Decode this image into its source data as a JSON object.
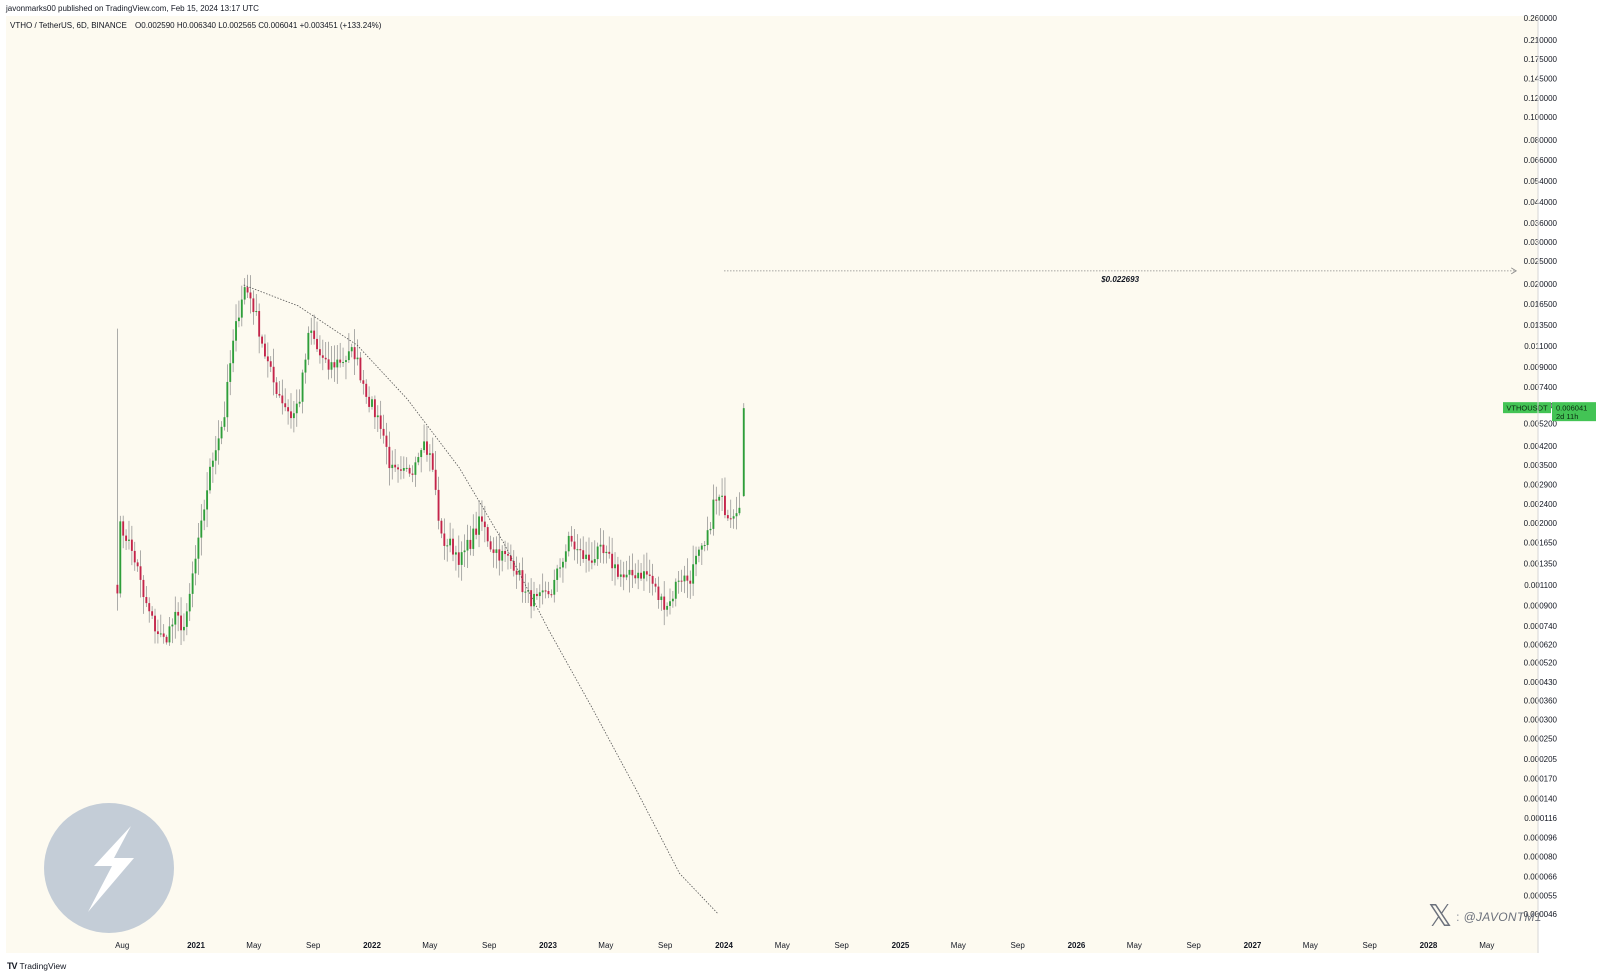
{
  "header": {
    "published_line": "javonmarks00 published on TradingView.com, Feb 15, 2024 13:17 UTC"
  },
  "footer": {
    "brand": "TradingView"
  },
  "watermark": {
    "handle": "@JAVONTM1",
    "colon": ":"
  },
  "legend": {
    "symbol_line": "VTHO / TetherUS, 6D, BINANCE",
    "ohlc": "O0.002590  H0.006340  L0.002565  C0.006041  +0.003451 (+133.24%)"
  },
  "price_tag": {
    "symbol": "VTHOUSDT",
    "price": "0.006041",
    "countdown": "2d 11h"
  },
  "colors": {
    "background": "#fdfaf0",
    "up": "#2e9e3a",
    "down": "#c4244a",
    "tag": "#43c455"
  },
  "chart_data": {
    "type": "candlestick",
    "scale": "log",
    "ylim": [
      4.6e-05,
      0.26
    ],
    "y_ticks": [
      0.26,
      0.21,
      0.175,
      0.145,
      0.12,
      0.1,
      0.08,
      0.066,
      0.054,
      0.044,
      0.036,
      0.03,
      0.025,
      0.02,
      0.0165,
      0.0135,
      0.011,
      0.009,
      0.0074,
      0.0062,
      0.0052,
      0.0042,
      0.0035,
      0.0029,
      0.0024,
      0.002,
      0.00165,
      0.00135,
      0.0011,
      0.0009,
      0.00074,
      0.00062,
      0.00052,
      0.00043,
      0.00036,
      0.0003,
      0.00025,
      0.000205,
      0.00017,
      0.00014,
      0.000116,
      9.6e-05,
      8e-05,
      6.6e-05,
      5.5e-05,
      4.6e-05
    ],
    "x_tick_labels": [
      {
        "label": "Aug",
        "date": "2020-08-01",
        "major": false
      },
      {
        "label": "2021",
        "date": "2021-01-01",
        "major": true
      },
      {
        "label": "May",
        "date": "2021-05-01",
        "major": false
      },
      {
        "label": "Sep",
        "date": "2021-09-01",
        "major": false
      },
      {
        "label": "2022",
        "date": "2022-01-01",
        "major": true
      },
      {
        "label": "May",
        "date": "2022-05-01",
        "major": false
      },
      {
        "label": "Sep",
        "date": "2022-09-01",
        "major": false
      },
      {
        "label": "2023",
        "date": "2023-01-01",
        "major": true
      },
      {
        "label": "May",
        "date": "2023-05-01",
        "major": false
      },
      {
        "label": "Sep",
        "date": "2023-09-01",
        "major": false
      },
      {
        "label": "2024",
        "date": "2024-01-01",
        "major": true
      },
      {
        "label": "May",
        "date": "2024-05-01",
        "major": false
      },
      {
        "label": "Sep",
        "date": "2024-09-01",
        "major": false
      },
      {
        "label": "2025",
        "date": "2025-01-01",
        "major": true
      },
      {
        "label": "May",
        "date": "2025-05-01",
        "major": false
      },
      {
        "label": "Sep",
        "date": "2025-09-01",
        "major": false
      },
      {
        "label": "2026",
        "date": "2026-01-01",
        "major": true
      },
      {
        "label": "May",
        "date": "2026-05-01",
        "major": false
      },
      {
        "label": "Sep",
        "date": "2026-09-01",
        "major": false
      },
      {
        "label": "2027",
        "date": "2027-01-01",
        "major": true
      },
      {
        "label": "May",
        "date": "2027-05-01",
        "major": false
      },
      {
        "label": "Sep",
        "date": "2027-09-01",
        "major": false
      },
      {
        "label": "2028",
        "date": "2028-01-01",
        "major": true
      },
      {
        "label": "May",
        "date": "2028-05-01",
        "major": false
      }
    ],
    "candle_close_path": [
      {
        "date": "2020-07-22",
        "close": 0.0011
      },
      {
        "date": "2020-07-28",
        "close": 0.0019
      },
      {
        "date": "2020-08-10",
        "close": 0.00175
      },
      {
        "date": "2020-08-30",
        "close": 0.00135
      },
      {
        "date": "2020-09-15",
        "close": 0.00095
      },
      {
        "date": "2020-10-05",
        "close": 0.00075
      },
      {
        "date": "2020-10-25",
        "close": 0.00064
      },
      {
        "date": "2020-11-20",
        "close": 0.0008
      },
      {
        "date": "2020-12-10",
        "close": 0.00072
      },
      {
        "date": "2020-12-25",
        "close": 0.0012
      },
      {
        "date": "2021-01-10",
        "close": 0.0018
      },
      {
        "date": "2021-01-25",
        "close": 0.0029
      },
      {
        "date": "2021-02-10",
        "close": 0.0042
      },
      {
        "date": "2021-02-28",
        "close": 0.0055
      },
      {
        "date": "2021-03-15",
        "close": 0.01
      },
      {
        "date": "2021-04-01",
        "close": 0.016
      },
      {
        "date": "2021-04-10",
        "close": 0.0195
      },
      {
        "date": "2021-04-25",
        "close": 0.0175
      },
      {
        "date": "2021-05-10",
        "close": 0.0135
      },
      {
        "date": "2021-05-25",
        "close": 0.01
      },
      {
        "date": "2021-06-10",
        "close": 0.0078
      },
      {
        "date": "2021-06-30",
        "close": 0.0065
      },
      {
        "date": "2021-07-20",
        "close": 0.0055
      },
      {
        "date": "2021-08-05",
        "close": 0.0068
      },
      {
        "date": "2021-08-25",
        "close": 0.013
      },
      {
        "date": "2021-09-10",
        "close": 0.0105
      },
      {
        "date": "2021-09-30",
        "close": 0.0088
      },
      {
        "date": "2021-10-20",
        "close": 0.0095
      },
      {
        "date": "2021-11-10",
        "close": 0.0098
      },
      {
        "date": "2021-11-25",
        "close": 0.0105
      },
      {
        "date": "2021-12-10",
        "close": 0.0082
      },
      {
        "date": "2021-12-30",
        "close": 0.0062
      },
      {
        "date": "2022-01-20",
        "close": 0.0052
      },
      {
        "date": "2022-02-10",
        "close": 0.0033
      },
      {
        "date": "2022-03-01",
        "close": 0.0031
      },
      {
        "date": "2022-03-25",
        "close": 0.0034
      },
      {
        "date": "2022-04-15",
        "close": 0.0045
      },
      {
        "date": "2022-05-05",
        "close": 0.0036
      },
      {
        "date": "2022-05-25",
        "close": 0.0017
      },
      {
        "date": "2022-06-15",
        "close": 0.0016
      },
      {
        "date": "2022-07-05",
        "close": 0.0014
      },
      {
        "date": "2022-07-25",
        "close": 0.0017
      },
      {
        "date": "2022-08-15",
        "close": 0.00205
      },
      {
        "date": "2022-09-05",
        "close": 0.0016
      },
      {
        "date": "2022-09-30",
        "close": 0.00145
      },
      {
        "date": "2022-10-25",
        "close": 0.00135
      },
      {
        "date": "2022-11-15",
        "close": 0.001
      },
      {
        "date": "2022-12-10",
        "close": 0.00093
      },
      {
        "date": "2023-01-10",
        "close": 0.00105
      },
      {
        "date": "2023-01-30",
        "close": 0.0014
      },
      {
        "date": "2023-02-15",
        "close": 0.0017
      },
      {
        "date": "2023-03-05",
        "close": 0.0015
      },
      {
        "date": "2023-03-25",
        "close": 0.0014
      },
      {
        "date": "2023-04-20",
        "close": 0.0015
      },
      {
        "date": "2023-05-15",
        "close": 0.00135
      },
      {
        "date": "2023-06-10",
        "close": 0.00115
      },
      {
        "date": "2023-07-05",
        "close": 0.00125
      },
      {
        "date": "2023-07-30",
        "close": 0.0012
      },
      {
        "date": "2023-08-20",
        "close": 0.00095
      },
      {
        "date": "2023-09-10",
        "close": 0.00092
      },
      {
        "date": "2023-09-30",
        "close": 0.0012
      },
      {
        "date": "2023-10-20",
        "close": 0.00115
      },
      {
        "date": "2023-11-05",
        "close": 0.0014
      },
      {
        "date": "2023-11-25",
        "close": 0.0016
      },
      {
        "date": "2023-12-10",
        "close": 0.0024
      },
      {
        "date": "2023-12-25",
        "close": 0.0025
      },
      {
        "date": "2024-01-10",
        "close": 0.0022
      },
      {
        "date": "2024-01-25",
        "close": 0.0023
      },
      {
        "date": "2024-02-05",
        "close": 0.00259
      },
      {
        "date": "2024-02-11",
        "close": 0.006041
      }
    ],
    "last_candle": {
      "open": 0.00259,
      "high": 0.00634,
      "low": 0.002565,
      "close": 0.006041
    },
    "first_candle_high": 0.013,
    "target_level": {
      "value": 0.022693,
      "label": "$0.022693",
      "from_date": "2024-01-01",
      "to_date": "2028-07-01"
    },
    "trend_curve": [
      {
        "date": "2021-04-10",
        "value": 0.0198
      },
      {
        "date": "2021-08-01",
        "value": 0.0162
      },
      {
        "date": "2021-12-01",
        "value": 0.0111
      },
      {
        "date": "2022-03-15",
        "value": 0.0066
      },
      {
        "date": "2022-07-01",
        "value": 0.0034
      },
      {
        "date": "2022-10-01",
        "value": 0.00165
      },
      {
        "date": "2023-01-01",
        "value": 0.00072
      },
      {
        "date": "2023-04-01",
        "value": 0.00034
      },
      {
        "date": "2023-07-01",
        "value": 0.000155
      },
      {
        "date": "2023-10-01",
        "value": 6.8e-05
      },
      {
        "date": "2023-12-20",
        "value": 4.6e-05
      }
    ]
  }
}
